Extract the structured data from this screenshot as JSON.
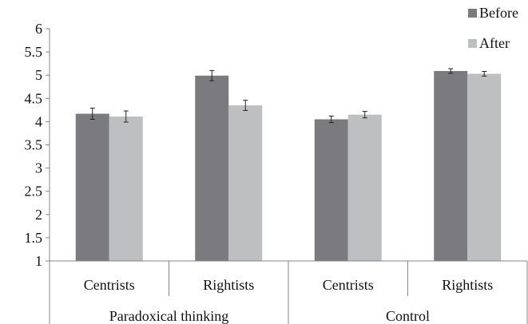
{
  "chart_data": {
    "type": "bar",
    "groups": [
      {
        "label": "Paradoxical thinking",
        "categories": [
          "Centrists",
          "Rightists"
        ]
      },
      {
        "label": "Control",
        "categories": [
          "Centrists",
          "Rightists"
        ]
      }
    ],
    "categories": [
      "Centrists",
      "Rightists",
      "Centrists",
      "Rightists"
    ],
    "series": [
      {
        "name": "Before",
        "color": "#7b7b7f",
        "values": [
          4.17,
          4.99,
          4.05,
          5.09
        ],
        "errors": [
          0.12,
          0.11,
          0.07,
          0.05
        ]
      },
      {
        "name": "After",
        "color": "#bebfc1",
        "values": [
          4.11,
          4.35,
          4.15,
          5.03
        ],
        "errors": [
          0.12,
          0.11,
          0.07,
          0.05
        ]
      }
    ],
    "ylim": [
      1,
      6
    ],
    "yticks": [
      "1",
      "1.5",
      "2",
      "2.5",
      "3",
      "3.5",
      "4",
      "4.5",
      "5",
      "5.5",
      "6"
    ],
    "grid": false,
    "legend": "top-right",
    "title": "",
    "xlabel": "",
    "ylabel": ""
  }
}
